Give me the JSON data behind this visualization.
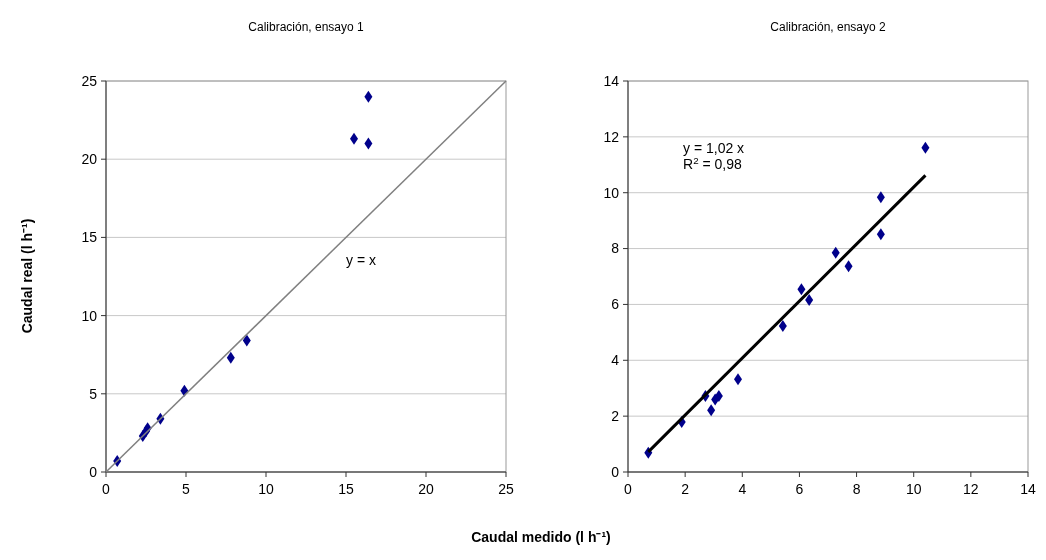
{
  "chart_data": [
    {
      "type": "scatter",
      "title": "Calibración, ensayo 1",
      "ylabel": "Caudal real (l h⁻¹)",
      "xlabel": "Caudal medido (l h⁻¹)",
      "xlim": [
        0,
        25
      ],
      "xticks": [
        0,
        5,
        10,
        15,
        20,
        25
      ],
      "ylim": [
        0,
        25
      ],
      "yticks": [
        0,
        5,
        10,
        15,
        20,
        25
      ],
      "grid": "y",
      "marker": "diamond",
      "series": [
        {
          "color": "#00008b",
          "x": [
            0.7,
            2.3,
            2.5,
            2.6,
            3.4,
            4.9,
            7.8,
            8.8,
            15.5,
            16.4,
            16.4
          ],
          "values": [
            0.7,
            2.3,
            2.6,
            2.8,
            3.4,
            5.2,
            7.3,
            8.4,
            21.3,
            21.0,
            24.0
          ]
        },
        {
          "type": "line",
          "color": "#808080",
          "x": [
            0,
            25
          ],
          "values": [
            0,
            25
          ],
          "marker": "none"
        }
      ],
      "annotations": [
        "y = x"
      ]
    },
    {
      "type": "scatter",
      "title": "Calibración, ensayo 2",
      "xlim": [
        0,
        14
      ],
      "xticks": [
        0,
        2,
        4,
        6,
        8,
        10,
        12,
        14
      ],
      "ylim": [
        0,
        14
      ],
      "yticks": [
        0,
        2,
        4,
        6,
        8,
        10,
        12,
        14
      ],
      "grid": "y",
      "marker": "diamond",
      "series": [
        {
          "color": "#00008b",
          "x": [
            0.71,
            1.88,
            2.71,
            2.91,
            3.05,
            3.18,
            3.85,
            5.42,
            6.07,
            6.34,
            7.27,
            7.72,
            8.85,
            8.85,
            10.41
          ],
          "values": [
            0.69,
            1.79,
            2.72,
            2.21,
            2.6,
            2.72,
            3.32,
            5.23,
            6.54,
            6.16,
            7.85,
            7.37,
            9.84,
            8.51,
            11.61
          ]
        },
        {
          "type": "line",
          "color": "#000000",
          "x": [
            0.71,
            10.41
          ],
          "values": [
            0.72,
            10.62
          ],
          "marker": "none"
        }
      ],
      "annotations": [
        "y = 1,02 x",
        "R$^{2}$ = 0,98"
      ]
    }
  ]
}
